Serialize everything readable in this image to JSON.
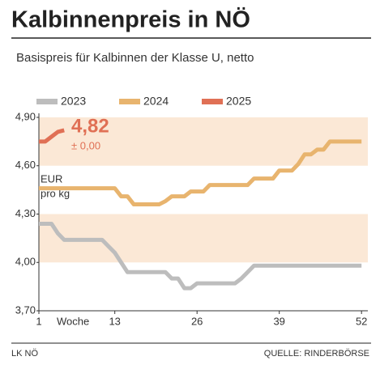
{
  "chart_data": {
    "type": "line",
    "title": "Kalbinnenpreis in NÖ",
    "subtitle": "Basispreis für Kalbinnen der Klasse U, netto",
    "x_label": "Woche",
    "unit": [
      "EUR",
      "pro kg"
    ],
    "annotations": [
      "4,82",
      "± 0,00"
    ],
    "source_left": "LK NÖ",
    "source_right": "QUELLE: RINDERBÖRSE",
    "x": [
      1,
      2,
      3,
      4,
      5,
      6,
      7,
      8,
      9,
      10,
      11,
      12,
      13,
      14,
      15,
      16,
      17,
      18,
      19,
      20,
      21,
      22,
      23,
      24,
      25,
      26,
      27,
      28,
      29,
      30,
      31,
      32,
      33,
      34,
      35,
      36,
      37,
      38,
      39,
      40,
      41,
      42,
      43,
      44,
      45,
      46,
      47,
      48,
      49,
      50,
      51,
      52
    ],
    "series": [
      {
        "name": "2023",
        "color": "#bdbdbd",
        "values": [
          4.24,
          4.24,
          4.24,
          4.18,
          4.14,
          4.14,
          4.14,
          4.14,
          4.14,
          4.14,
          4.14,
          4.1,
          4.06,
          4.0,
          3.94,
          3.94,
          3.94,
          3.94,
          3.94,
          3.94,
          3.94,
          3.9,
          3.9,
          3.84,
          3.84,
          3.87,
          3.87,
          3.87,
          3.87,
          3.87,
          3.87,
          3.87,
          3.9,
          3.94,
          3.98,
          3.98,
          3.98,
          3.98,
          3.98,
          3.98,
          3.98,
          3.98,
          3.98,
          3.98,
          3.98,
          3.98,
          3.98,
          3.98,
          3.98,
          3.98,
          3.98,
          3.98
        ]
      },
      {
        "name": "2024",
        "color": "#e8b46e",
        "values": [
          4.46,
          4.46,
          4.46,
          4.46,
          4.46,
          4.46,
          4.46,
          4.46,
          4.46,
          4.46,
          4.46,
          4.46,
          4.46,
          4.41,
          4.41,
          4.36,
          4.36,
          4.36,
          4.36,
          4.36,
          4.38,
          4.41,
          4.41,
          4.41,
          4.44,
          4.44,
          4.44,
          4.48,
          4.48,
          4.48,
          4.48,
          4.48,
          4.48,
          4.48,
          4.52,
          4.52,
          4.52,
          4.52,
          4.57,
          4.57,
          4.57,
          4.61,
          4.67,
          4.67,
          4.7,
          4.7,
          4.75,
          4.75,
          4.75,
          4.75,
          4.75,
          4.75
        ]
      },
      {
        "name": "2025",
        "color": "#e07055",
        "values": [
          4.75,
          4.75,
          4.78,
          4.81,
          4.82,
          null,
          null,
          null,
          null,
          null,
          null,
          null,
          null,
          null,
          null,
          null,
          null,
          null,
          null,
          null,
          null,
          null,
          null,
          null,
          null,
          null,
          null,
          null,
          null,
          null,
          null,
          null,
          null,
          null,
          null,
          null,
          null,
          null,
          null,
          null,
          null,
          null,
          null,
          null,
          null,
          null,
          null,
          null,
          null,
          null,
          null,
          null
        ]
      }
    ],
    "xlim": [
      1,
      53
    ],
    "xticks": [
      1,
      13,
      26,
      39,
      52
    ],
    "ylim": [
      3.7,
      4.9
    ],
    "yticks": [
      {
        "value": 4.9,
        "label": "4,90"
      },
      {
        "value": 4.6,
        "label": "4,60"
      },
      {
        "value": 4.3,
        "label": "4,30"
      },
      {
        "value": 4.0,
        "label": "4,00"
      },
      {
        "value": 3.7,
        "label": "3,70"
      }
    ],
    "band_color": "#fbe8d6"
  }
}
